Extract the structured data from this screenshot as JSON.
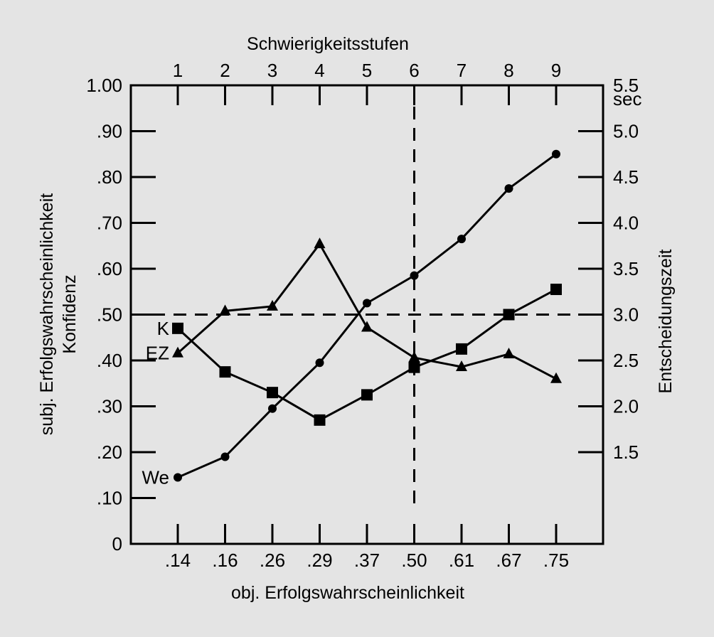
{
  "chart_data": {
    "type": "line",
    "top_axis_title": "Schwierigkeitsstufen",
    "top_ticks": [
      "1",
      "2",
      "3",
      "4",
      "5",
      "6",
      "7",
      "8",
      "9"
    ],
    "xlabel": "obj. Erfolgswahrscheinlichkeit",
    "categories": [
      ".14",
      ".16",
      ".26",
      ".29",
      ".37",
      ".50",
      ".61",
      ".67",
      ".75"
    ],
    "ylabel_left_line1": "subj. Erfolgswahrscheinlichkeit",
    "ylabel_left_line2": "Konfidenz",
    "ylim_left": [
      0,
      1.0
    ],
    "left_ticks": [
      {
        "value": 0,
        "label": "0"
      },
      {
        "value": 0.1,
        "label": ".10"
      },
      {
        "value": 0.2,
        "label": ".20"
      },
      {
        "value": 0.3,
        "label": ".30"
      },
      {
        "value": 0.4,
        "label": ".40"
      },
      {
        "value": 0.5,
        "label": ".50"
      },
      {
        "value": 0.6,
        "label": ".60"
      },
      {
        "value": 0.7,
        "label": ".70"
      },
      {
        "value": 0.8,
        "label": ".80"
      },
      {
        "value": 0.9,
        "label": ".90"
      },
      {
        "value": 1.0,
        "label": "1.00"
      }
    ],
    "ylabel_right": "Entscheidungszeit",
    "right_unit": "sec",
    "ylim_right": [
      0.5,
      5.5
    ],
    "right_ticks": [
      {
        "value": 1.5,
        "label": "1.5"
      },
      {
        "value": 2.0,
        "label": "2.0"
      },
      {
        "value": 2.5,
        "label": "2.5"
      },
      {
        "value": 3.0,
        "label": "3.0"
      },
      {
        "value": 3.5,
        "label": "3.5"
      },
      {
        "value": 4.0,
        "label": "4.0"
      },
      {
        "value": 4.5,
        "label": "4.5"
      },
      {
        "value": 5.0,
        "label": "5.0"
      },
      {
        "value": 5.5,
        "label": "5.5"
      }
    ],
    "reference_lines": {
      "horizontal_left_value": 0.5,
      "vertical_category": ".50"
    },
    "series": [
      {
        "name": "We",
        "axis": "left",
        "marker": "circle",
        "values": [
          0.145,
          0.19,
          0.295,
          0.395,
          0.525,
          0.585,
          0.665,
          0.775,
          0.85
        ]
      },
      {
        "name": "K",
        "axis": "left",
        "marker": "square",
        "values": [
          0.47,
          0.375,
          0.33,
          0.27,
          0.325,
          0.385,
          0.425,
          0.5,
          0.555
        ]
      },
      {
        "name": "EZ",
        "axis": "right",
        "marker": "triangle",
        "values": [
          2.58,
          3.04,
          3.09,
          3.77,
          2.86,
          2.53,
          2.43,
          2.57,
          2.3
        ]
      }
    ],
    "grid": false,
    "legend": "none"
  }
}
